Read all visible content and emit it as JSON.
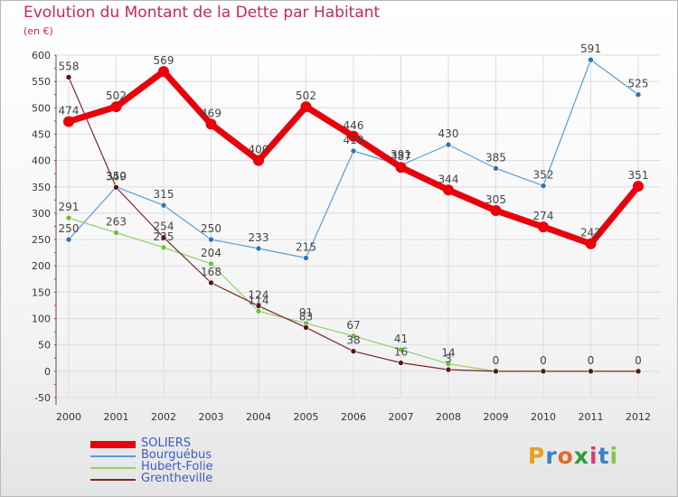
{
  "title": "Evolution du Montant de la Dette par Habitant",
  "unit": "(en €)",
  "logo": "Proxiti",
  "colors": {
    "title": "#c9265a",
    "axis": "#333333",
    "grid": "#dddddd",
    "legend_text": "#3b5bc4"
  },
  "chart_data": {
    "type": "line",
    "title": "Evolution du Montant de la Dette par Habitant",
    "ylabel": "(en €)",
    "xlabel": "",
    "x": [
      "2000",
      "2001",
      "2002",
      "2003",
      "2004",
      "2005",
      "2006",
      "2007",
      "2008",
      "2009",
      "2010",
      "2011",
      "2012"
    ],
    "yticks": [
      600,
      550,
      500,
      450,
      400,
      350,
      300,
      250,
      200,
      150,
      100,
      50,
      0,
      -50
    ],
    "ylim": [
      -50,
      600
    ],
    "grid": true,
    "legend_position": "bottom-left",
    "series": [
      {
        "name": "SOLIERS",
        "color": "#e8000b",
        "marker": "#e8000b",
        "width": 7,
        "values": [
          474,
          502,
          569,
          469,
          400,
          502,
          446,
          387,
          344,
          305,
          274,
          242,
          351
        ],
        "labels": [
          "474",
          "502",
          "569",
          "469",
          "400",
          "502",
          "446",
          "387",
          "344",
          "305",
          "274",
          "242",
          "351"
        ]
      },
      {
        "name": "Bourguébus",
        "color": "#5b9bd5",
        "marker": "#2f73b8",
        "width": 1.2,
        "values": [
          250,
          350,
          315,
          250,
          233,
          215,
          418,
          391,
          430,
          385,
          352,
          591,
          525
        ],
        "labels": [
          "250",
          "350",
          "315",
          "250",
          "233",
          "215",
          "418",
          "391",
          "430",
          "385",
          "352",
          "591",
          "525"
        ]
      },
      {
        "name": "Hubert-Folie",
        "color": "#8fd16a",
        "marker": "#69c23c",
        "width": 1.2,
        "values": [
          291,
          263,
          235,
          204,
          114,
          91,
          67,
          41,
          14,
          0,
          0,
          0,
          0
        ],
        "labels": [
          "291",
          "263",
          "235",
          "204",
          "114",
          "91",
          "67",
          "41",
          "14",
          "",
          "",
          "",
          ""
        ]
      },
      {
        "name": "Grentheville",
        "color": "#7a2a2a",
        "marker": "#5a1515",
        "width": 1.2,
        "values": [
          558,
          349,
          254,
          168,
          124,
          83,
          38,
          16,
          3,
          0,
          0,
          0,
          0
        ],
        "labels": [
          "558",
          "349",
          "254",
          "168",
          "124",
          "83",
          "38",
          "16",
          "3",
          "0",
          "0",
          "0",
          "0"
        ]
      }
    ]
  }
}
